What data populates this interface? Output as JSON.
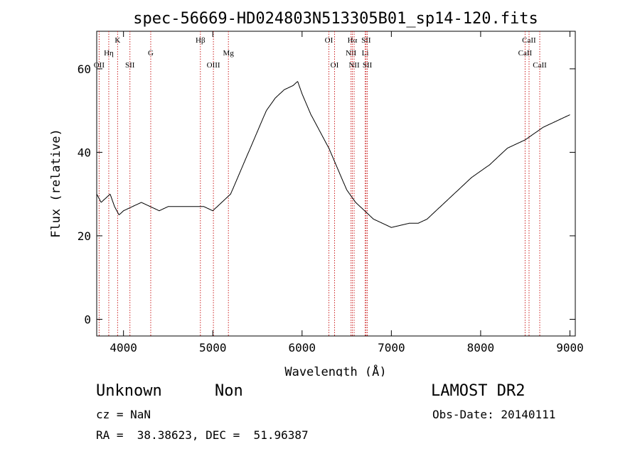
{
  "chart_data": {
    "type": "line",
    "title": "spec-56669-HD024803N513305B01_sp14-120.fits",
    "xlabel": "Wavelength (Å)",
    "ylabel": "Flux (relative)",
    "xlim": [
      3700,
      9060
    ],
    "ylim": [
      -4,
      69
    ],
    "x_ticks": [
      4000,
      5000,
      6000,
      7000,
      8000,
      9000
    ],
    "y_ticks": [
      0,
      20,
      40,
      60
    ],
    "line_color": "#000000",
    "marker_color": "#cc2222",
    "series": [
      {
        "x": [
          3700,
          3750,
          3800,
          3850,
          3900,
          3950,
          4000,
          4100,
          4200,
          4300,
          4400,
          4500,
          4600,
          4700,
          4800,
          4900,
          5000,
          5100,
          5200,
          5300,
          5400,
          5500,
          5600,
          5700,
          5800,
          5900,
          5950,
          6000,
          6100,
          6200,
          6300,
          6400,
          6500,
          6600,
          6700,
          6800,
          6900,
          7000,
          7100,
          7200,
          7300,
          7400,
          7500,
          7600,
          7700,
          7800,
          7900,
          8000,
          8100,
          8200,
          8300,
          8400,
          8500,
          8600,
          8700,
          8800,
          8900,
          9000
        ],
        "y": [
          30,
          28,
          29,
          30,
          27,
          25,
          26,
          27,
          28,
          27,
          26,
          27,
          27,
          27,
          27,
          27,
          26,
          28,
          30,
          35,
          40,
          45,
          50,
          53,
          55,
          56,
          57,
          54,
          49,
          45,
          41,
          36,
          31,
          28,
          26,
          24,
          23,
          22,
          22.5,
          23,
          23,
          24,
          26,
          28,
          30,
          32,
          34,
          35.5,
          37,
          39,
          41,
          42,
          43,
          44.5,
          46,
          47,
          48,
          49
        ]
      }
    ],
    "line_markers": [
      {
        "label": "OII",
        "x": 3727,
        "row": 3
      },
      {
        "label": "Hη",
        "x": 3835,
        "row": 2
      },
      {
        "label": "K",
        "x": 3934,
        "row": 1
      },
      {
        "label": "SII",
        "x": 4072,
        "row": 3
      },
      {
        "label": "G",
        "x": 4305,
        "row": 2
      },
      {
        "label": "Hβ",
        "x": 4861,
        "row": 1
      },
      {
        "label": "OIII",
        "x": 5007,
        "row": 3
      },
      {
        "label": "Mg",
        "x": 5175,
        "row": 2
      },
      {
        "label": "OI",
        "x": 6300,
        "row": 1
      },
      {
        "label": "OI",
        "x": 6364,
        "row": 3
      },
      {
        "label": "NII",
        "x": 6548,
        "row": 2
      },
      {
        "label": "Hα",
        "x": 6563,
        "row": 1
      },
      {
        "label": "NII",
        "x": 6583,
        "row": 3
      },
      {
        "label": "Li",
        "x": 6707,
        "row": 2
      },
      {
        "label": "SII",
        "x": 6717,
        "row": 1
      },
      {
        "label": "SII",
        "x": 6731,
        "row": 3
      },
      {
        "label": "CaII",
        "x": 8498,
        "row": 2
      },
      {
        "label": "CaII",
        "x": 8542,
        "row": 1
      },
      {
        "label": "CaII",
        "x": 8662,
        "row": 3
      }
    ]
  },
  "info": {
    "class": "Unknown",
    "subclass": "Non",
    "survey": "LAMOST DR2",
    "cz": "cz = NaN",
    "obs_date": "Obs-Date: 20140111",
    "coords": "RA =  38.38623, DEC =  51.96387"
  }
}
